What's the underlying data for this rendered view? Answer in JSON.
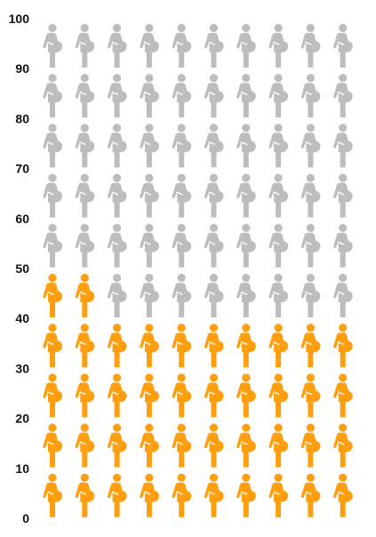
{
  "chart_data": {
    "type": "pictograph",
    "icon": "pregnant-woman-icon",
    "ylim": [
      0,
      100
    ],
    "y_ticks": [
      "0",
      "10",
      "20",
      "30",
      "40",
      "50",
      "60",
      "70",
      "80",
      "90",
      "100"
    ],
    "total_icons": 100,
    "columns": 10,
    "value": 42,
    "colors": {
      "filled": "#FF9E0F",
      "empty": "#BDBDBD"
    },
    "grid": false,
    "legend": "none"
  }
}
